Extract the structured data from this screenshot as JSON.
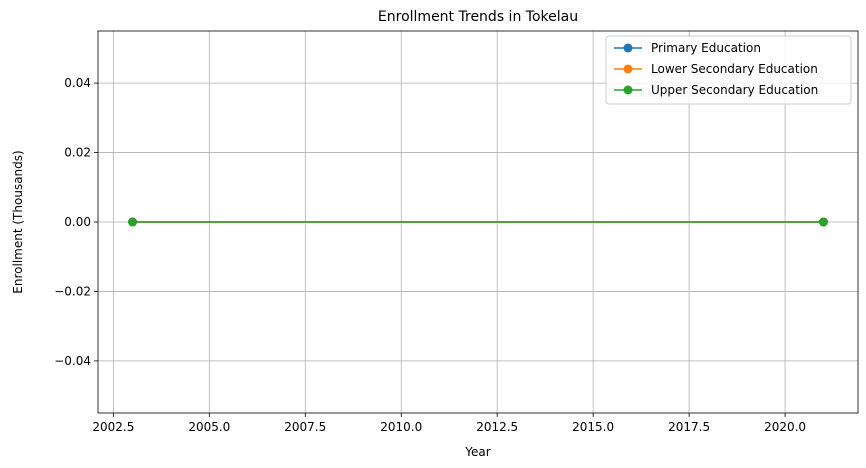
{
  "chart_data": {
    "type": "line",
    "title": "Enrollment Trends in Tokelau",
    "xlabel": "Year",
    "ylabel": "Enrollment (Thousands)",
    "xlim": [
      2002.1,
      2021.9
    ],
    "ylim": [
      -0.055,
      0.055
    ],
    "xticks": [
      2002.5,
      2005.0,
      2007.5,
      2010.0,
      2012.5,
      2015.0,
      2017.5,
      2020.0
    ],
    "xtick_labels": [
      "2002.5",
      "2005.0",
      "2007.5",
      "2010.0",
      "2012.5",
      "2015.0",
      "2017.5",
      "2020.0"
    ],
    "yticks": [
      -0.04,
      -0.02,
      0.0,
      0.02,
      0.04
    ],
    "ytick_labels": [
      "−0.04",
      "−0.02",
      "0.00",
      "0.02",
      "0.04"
    ],
    "grid": true,
    "legend_position": "top-right",
    "x": [
      2003,
      2021
    ],
    "series": [
      {
        "name": "Primary Education",
        "color": "#1f77b4",
        "marker": "circle",
        "values": [
          0,
          0
        ]
      },
      {
        "name": "Lower Secondary Education",
        "color": "#ff7f0e",
        "marker": "circle",
        "values": [
          0,
          0
        ]
      },
      {
        "name": "Upper Secondary Education",
        "color": "#2ca02c",
        "marker": "circle",
        "values": [
          0,
          0
        ]
      }
    ]
  }
}
